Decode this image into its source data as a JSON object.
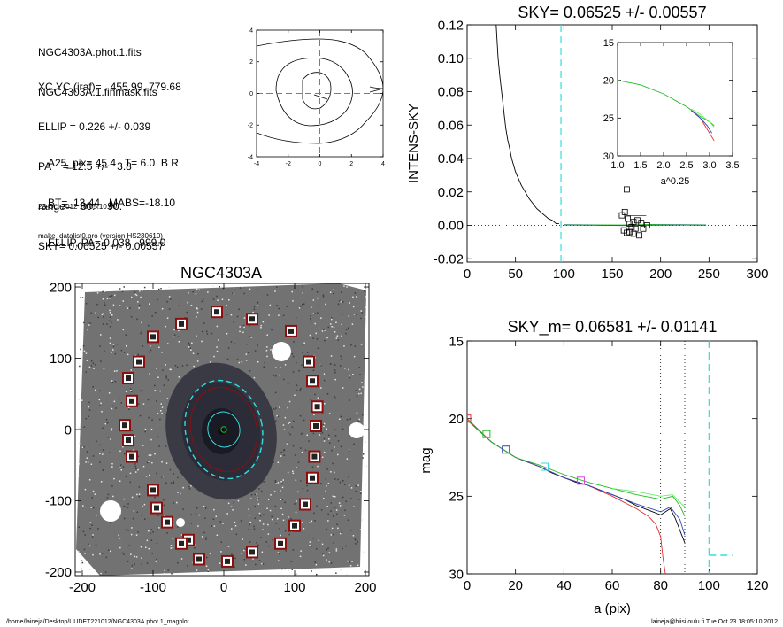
{
  "header": {
    "file_lines": [
      "NGC4303A.phot.1.fits",
      "NGC4303A.1.finmask.fits"
    ],
    "param_lines": [
      "XC,YC (iraf)=   455.99, 779.68",
      "ELLIP = 0.226 +/- 0.039",
      "PA    = 12.5 +/-   3.8",
      "range=   80.-   90.",
      "SKY= 0.06525 +/- 0.00557"
    ],
    "result_lines": [
      "A25_pix= 45.4   T= 6.0  B R",
      "BT=  13.44   MABS=-18.10",
      "ELLIP, PA= 0.038   999.0"
    ],
    "date": "23-Oct-2012 18:05:10.00",
    "program": "make_datalist0.pro (version HS230610)"
  },
  "footer": {
    "path": "/home/laineja/Desktop/UUDET221012/NGC4303A.phot.1_magplot",
    "user": "laineja@hiisi.oulu.fi  Tue Oct 23 18:05:10 2012"
  },
  "colors": {
    "cyan": "#33dddd",
    "dark_red": "#8a1010",
    "red": "#e03030",
    "green": "#22bb22",
    "light_green": "#66ee66",
    "blue": "#3344bb",
    "magenta": "#dd44dd"
  },
  "chart_data": [
    {
      "id": "contour",
      "type": "contour",
      "xlim": [
        -4,
        4
      ],
      "ylim": [
        -4,
        4
      ],
      "xticks": [
        "-4",
        "-2",
        "0",
        "2",
        "4"
      ],
      "yticks": [
        "-4",
        "-2",
        "0",
        "2",
        "4"
      ],
      "center_cross": [
        0,
        0
      ]
    },
    {
      "id": "sky",
      "type": "line",
      "title": "SKY= 0.06525 +/- 0.00557",
      "ylabel": "INTENS-SKY",
      "xlim": [
        0,
        300
      ],
      "ylim": [
        -0.022,
        0.12
      ],
      "xticks": [
        "0",
        "50",
        "100",
        "150",
        "200",
        "250",
        "300"
      ],
      "yticks": [
        "-0.02",
        "0.00",
        "0.02",
        "0.04",
        "0.06",
        "0.08",
        "0.10",
        "0.12"
      ],
      "vline": 97,
      "series": [
        {
          "color": "black",
          "points": [
            [
              30,
              0.12
            ],
            [
              31,
              0.11
            ],
            [
              32,
              0.1
            ],
            [
              34,
              0.088
            ],
            [
              36,
              0.078
            ],
            [
              38,
              0.068
            ],
            [
              40,
              0.058
            ],
            [
              42,
              0.051
            ],
            [
              44,
              0.046
            ],
            [
              46,
              0.04
            ],
            [
              48,
              0.036
            ],
            [
              50,
              0.032
            ],
            [
              53,
              0.028
            ],
            [
              56,
              0.024
            ],
            [
              60,
              0.02
            ],
            [
              64,
              0.016
            ],
            [
              68,
              0.013
            ],
            [
              72,
              0.01
            ],
            [
              76,
              0.008
            ],
            [
              80,
              0.006
            ],
            [
              84,
              0.004
            ],
            [
              88,
              0.003
            ],
            [
              92,
              0.001
            ],
            [
              95,
              0.001
            ]
          ]
        },
        {
          "color": "#22bb22",
          "points": [
            [
              100,
              0.0004
            ],
            [
              130,
              0.0003
            ],
            [
              160,
              0.0002
            ],
            [
              190,
              0.0005
            ],
            [
              220,
              0.0004
            ],
            [
              247,
              0.0003
            ]
          ]
        },
        {
          "color": "#3344bb",
          "points": [
            [
              100,
              0.0002
            ],
            [
              130,
              0.0001
            ],
            [
              160,
              -0.0001
            ],
            [
              190,
              0.0001
            ],
            [
              220,
              0.0002
            ],
            [
              247,
              0.0001
            ]
          ]
        },
        {
          "color": "#e03030",
          "points": [
            [
              165,
              0.0058
            ],
            [
              185,
              0.0058
            ]
          ]
        }
      ],
      "squares": [
        [
          165,
          0.0215
        ],
        [
          163,
          0.008
        ],
        [
          160,
          0.006
        ],
        [
          166,
          0.004
        ],
        [
          168,
          0.001
        ],
        [
          170,
          -0.001
        ],
        [
          172,
          0.002
        ],
        [
          174,
          -0.002
        ],
        [
          176,
          0.003
        ],
        [
          168,
          -0.004
        ],
        [
          172,
          -0.005
        ],
        [
          178,
          -0.006
        ],
        [
          162,
          -0.003
        ],
        [
          182,
          -0.002
        ],
        [
          186,
          0.0
        ],
        [
          165,
          -0.0045
        ],
        [
          180,
          0.0015
        ]
      ],
      "inset": {
        "xlim": [
          1.0,
          3.5
        ],
        "ylim": [
          15,
          30
        ],
        "xticks": [
          "1.0",
          "1.5",
          "2.0",
          "2.5",
          "3.0",
          "3.5"
        ],
        "yticks": [
          "15",
          "20",
          "25",
          "30"
        ],
        "xlabel": "a^0.25",
        "series": [
          {
            "color": "#22bb22",
            "points": [
              [
                1.0,
                20.0
              ],
              [
                1.5,
                20.6
              ],
              [
                2.0,
                21.8
              ],
              [
                2.5,
                23.5
              ],
              [
                2.8,
                24.8
              ],
              [
                3.0,
                25.5
              ],
              [
                3.1,
                26.0
              ]
            ]
          },
          {
            "color": "#e03030",
            "points": [
              [
                2.6,
                24.0
              ],
              [
                2.8,
                25.0
              ],
              [
                2.95,
                26.5
              ],
              [
                3.05,
                27.5
              ],
              [
                3.1,
                28.0
              ]
            ]
          },
          {
            "color": "#3344bb",
            "points": [
              [
                2.6,
                24.0
              ],
              [
                2.8,
                25.0
              ],
              [
                2.95,
                26.0
              ],
              [
                3.05,
                27.0
              ]
            ]
          },
          {
            "color": "#66ee66",
            "points": [
              [
                2.6,
                23.8
              ],
              [
                2.8,
                24.5
              ],
              [
                3.0,
                25.5
              ],
              [
                3.1,
                26.2
              ]
            ]
          }
        ]
      }
    },
    {
      "id": "image",
      "type": "image",
      "title": "NGC4303A",
      "xlim": [
        -210,
        205
      ],
      "ylim": [
        -205,
        205
      ],
      "xticks": [
        "-200",
        "-100",
        "0",
        "100",
        "200"
      ],
      "yticks": [
        "-200",
        "-100",
        "0",
        "100",
        "200"
      ],
      "ellipses": [
        {
          "r": 70,
          "ellip": 0.226,
          "pa": 12.5,
          "color": "#33dddd",
          "dash": true
        },
        {
          "r": 60,
          "ellip": 0.226,
          "pa": 12.5,
          "color": "#8a1010",
          "dash": false
        },
        {
          "r": 25,
          "ellip": 0.1,
          "pa": 12.5,
          "color": "#33dddd",
          "dash": false
        },
        {
          "r": 4,
          "ellip": 0.0,
          "pa": 0,
          "color": "#22bb22",
          "dash": false
        }
      ],
      "sky_boxes": [
        [
          -60,
          148
        ],
        [
          -10,
          165
        ],
        [
          40,
          155
        ],
        [
          -100,
          130
        ],
        [
          95,
          138
        ],
        [
          -120,
          95
        ],
        [
          -135,
          72
        ],
        [
          -130,
          40
        ],
        [
          -140,
          6
        ],
        [
          -135,
          -15
        ],
        [
          -130,
          -38
        ],
        [
          -100,
          -85
        ],
        [
          -95,
          -110
        ],
        [
          -80,
          -130
        ],
        [
          -50,
          -155
        ],
        [
          -35,
          -182
        ],
        [
          5,
          -185
        ],
        [
          40,
          -172
        ],
        [
          80,
          -160
        ],
        [
          -60,
          -160
        ],
        [
          120,
          95
        ],
        [
          125,
          68
        ],
        [
          132,
          32
        ],
        [
          130,
          5
        ],
        [
          128,
          -38
        ],
        [
          125,
          -68
        ],
        [
          115,
          -105
        ],
        [
          100,
          -135
        ]
      ]
    },
    {
      "id": "mag",
      "type": "line",
      "title": "SKY_m=  0.06581 +/- 0.01141",
      "xlabel": "a (pix)",
      "ylabel": "mag",
      "xlim": [
        0,
        120
      ],
      "ylim": [
        30,
        15
      ],
      "xticks": [
        "0",
        "20",
        "40",
        "60",
        "80",
        "100",
        "120"
      ],
      "yticks": [
        "15",
        "20",
        "25",
        "30"
      ],
      "vlines_dotted": [
        80,
        90
      ],
      "vline_dashed": 100,
      "series": [
        {
          "color": "black",
          "points": [
            [
              0,
              20.1
            ],
            [
              5,
              20.8
            ],
            [
              10,
              21.5
            ],
            [
              15,
              22.0
            ],
            [
              20,
              22.5
            ],
            [
              25,
              22.8
            ],
            [
              30,
              23.1
            ],
            [
              35,
              23.5
            ],
            [
              40,
              23.8
            ],
            [
              45,
              24.1
            ],
            [
              50,
              24.3
            ],
            [
              55,
              24.6
            ],
            [
              60,
              24.9
            ],
            [
              65,
              25.2
            ],
            [
              70,
              25.6
            ],
            [
              75,
              25.9
            ],
            [
              80,
              26.2
            ],
            [
              84,
              25.8
            ],
            [
              86,
              26.4
            ],
            [
              88,
              27.2
            ],
            [
              90,
              28.0
            ]
          ]
        },
        {
          "color": "#e03030",
          "points": [
            [
              0,
              20.0
            ],
            [
              10,
              21.5
            ],
            [
              20,
              22.5
            ],
            [
              30,
              23.1
            ],
            [
              40,
              23.8
            ],
            [
              50,
              24.3
            ],
            [
              60,
              25.0
            ],
            [
              70,
              25.8
            ],
            [
              75,
              26.3
            ],
            [
              78,
              26.8
            ],
            [
              80,
              27.6
            ],
            [
              81,
              29.0
            ],
            [
              82,
              30.0
            ]
          ]
        },
        {
          "color": "#3344bb",
          "points": [
            [
              0,
              20.1
            ],
            [
              10,
              21.5
            ],
            [
              20,
              22.5
            ],
            [
              30,
              23.1
            ],
            [
              40,
              23.8
            ],
            [
              50,
              24.3
            ],
            [
              60,
              24.9
            ],
            [
              70,
              25.5
            ],
            [
              80,
              26.0
            ],
            [
              84,
              25.7
            ],
            [
              88,
              26.5
            ],
            [
              90,
              27.5
            ]
          ]
        },
        {
          "color": "#22bb22",
          "points": [
            [
              0,
              20.1
            ],
            [
              10,
              21.5
            ],
            [
              20,
              22.5
            ],
            [
              30,
              23.0
            ],
            [
              40,
              23.6
            ],
            [
              50,
              24.1
            ],
            [
              60,
              24.5
            ],
            [
              70,
              24.9
            ],
            [
              80,
              25.2
            ],
            [
              85,
              25.0
            ],
            [
              88,
              25.6
            ],
            [
              90,
              26.3
            ]
          ]
        },
        {
          "color": "#66ee66",
          "points": [
            [
              60,
              24.5
            ],
            [
              70,
              24.7
            ],
            [
              80,
              25.0
            ],
            [
              85,
              24.9
            ],
            [
              90,
              25.7
            ]
          ]
        },
        {
          "color": "#33dddd",
          "points": [
            [
              100,
              28.8
            ],
            [
              110,
              28.8
            ]
          ]
        }
      ],
      "markers": [
        {
          "x": 0,
          "y": 20.0,
          "color": "#e03030"
        },
        {
          "x": 8,
          "y": 21.0,
          "color": "#22bb22"
        },
        {
          "x": 16,
          "y": 22.0,
          "color": "#3344bb"
        },
        {
          "x": 32,
          "y": 23.1,
          "color": "#33dddd"
        },
        {
          "x": 47,
          "y": 24.0,
          "color": "#dd44dd"
        }
      ]
    }
  ]
}
